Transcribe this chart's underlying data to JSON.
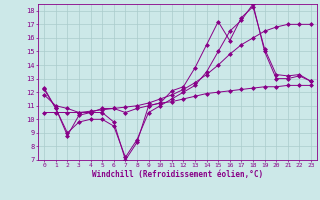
{
  "background_color": "#cce8e8",
  "grid_color": "#aacccc",
  "line_color": "#880088",
  "xlabel": "Windchill (Refroidissement éolien,°C)",
  "xlim": [
    -0.5,
    23.5
  ],
  "ylim": [
    7,
    18.5
  ],
  "yticks": [
    7,
    8,
    9,
    10,
    11,
    12,
    13,
    14,
    15,
    16,
    17,
    18
  ],
  "xticks": [
    0,
    1,
    2,
    3,
    4,
    5,
    6,
    7,
    8,
    9,
    10,
    11,
    12,
    13,
    14,
    15,
    16,
    17,
    18,
    19,
    20,
    21,
    22,
    23
  ],
  "lines": [
    {
      "x": [
        0,
        1,
        2,
        3,
        4,
        5,
        6,
        7,
        8,
        9,
        10,
        11,
        12,
        13,
        14,
        15,
        16,
        17,
        18,
        19,
        20,
        21,
        22,
        23
      ],
      "y": [
        12.3,
        10.8,
        8.8,
        10.3,
        10.5,
        10.5,
        9.8,
        7.0,
        8.3,
        11.0,
        11.2,
        12.1,
        12.4,
        13.8,
        15.5,
        17.2,
        15.8,
        17.5,
        18.3,
        15.2,
        13.3,
        13.2,
        13.3,
        12.8
      ]
    },
    {
      "x": [
        0,
        1,
        2,
        3,
        4,
        5,
        6,
        7,
        8,
        9,
        10,
        11,
        12,
        13,
        14,
        15,
        16,
        17,
        18,
        19,
        20,
        21,
        22,
        23
      ],
      "y": [
        11.8,
        11.0,
        10.8,
        10.5,
        10.5,
        10.8,
        10.8,
        10.5,
        10.8,
        11.0,
        11.2,
        11.3,
        11.5,
        11.7,
        11.9,
        12.0,
        12.1,
        12.2,
        12.3,
        12.4,
        12.4,
        12.5,
        12.5,
        12.5
      ]
    },
    {
      "x": [
        0,
        1,
        2,
        3,
        4,
        5,
        6,
        7,
        8,
        9,
        10,
        11,
        12,
        13,
        14,
        15,
        16,
        17,
        18,
        19,
        20,
        21,
        22,
        23
      ],
      "y": [
        10.5,
        10.5,
        10.5,
        10.5,
        10.6,
        10.7,
        10.8,
        10.9,
        11.0,
        11.2,
        11.5,
        11.8,
        12.2,
        12.7,
        13.3,
        14.0,
        14.8,
        15.5,
        16.0,
        16.5,
        16.8,
        17.0,
        17.0,
        17.0
      ]
    },
    {
      "x": [
        0,
        1,
        2,
        3,
        4,
        5,
        6,
        7,
        8,
        9,
        10,
        11,
        12,
        13,
        14,
        15,
        16,
        17,
        18,
        19,
        20,
        21,
        22,
        23
      ],
      "y": [
        12.2,
        10.8,
        9.0,
        9.8,
        10.0,
        10.0,
        9.5,
        7.2,
        8.5,
        10.5,
        11.0,
        11.5,
        12.0,
        12.5,
        13.5,
        15.0,
        16.5,
        17.3,
        18.5,
        15.0,
        13.0,
        13.0,
        13.2,
        12.8
      ]
    }
  ]
}
